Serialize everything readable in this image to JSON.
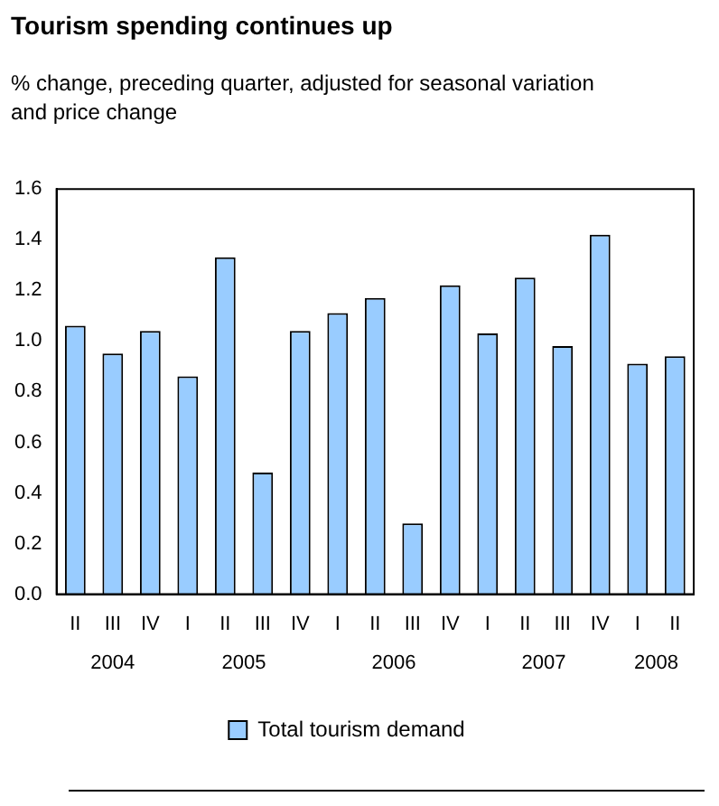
{
  "chart_data": {
    "type": "bar",
    "title": "Tourism spending continues up",
    "subtitle": "% change, preceding quarter, adjusted for seasonal variation and price change",
    "categories": [
      "II",
      "III",
      "IV",
      "I",
      "II",
      "III",
      "IV",
      "I",
      "II",
      "III",
      "IV",
      "I",
      "II",
      "III",
      "IV",
      "I",
      "II"
    ],
    "series": [
      {
        "name": "Total tourism demand",
        "color": "#99ccff",
        "values": [
          1.06,
          0.95,
          1.04,
          0.86,
          1.33,
          0.48,
          1.04,
          1.11,
          1.17,
          0.28,
          1.22,
          1.03,
          1.25,
          0.98,
          1.42,
          0.91,
          0.94
        ]
      }
    ],
    "annotations": [
      "2004",
      "2005",
      "2006",
      "2007",
      "2008"
    ],
    "ylim": [
      0,
      1.6
    ],
    "yticks": [
      {
        "value": 0,
        "label": "0.0"
      },
      0.2,
      0.4,
      0.6,
      0.8,
      {
        "value": 1,
        "label": "1.0"
      },
      1.2,
      1.4,
      1.6
    ],
    "grid": false,
    "legend": "bottom"
  }
}
